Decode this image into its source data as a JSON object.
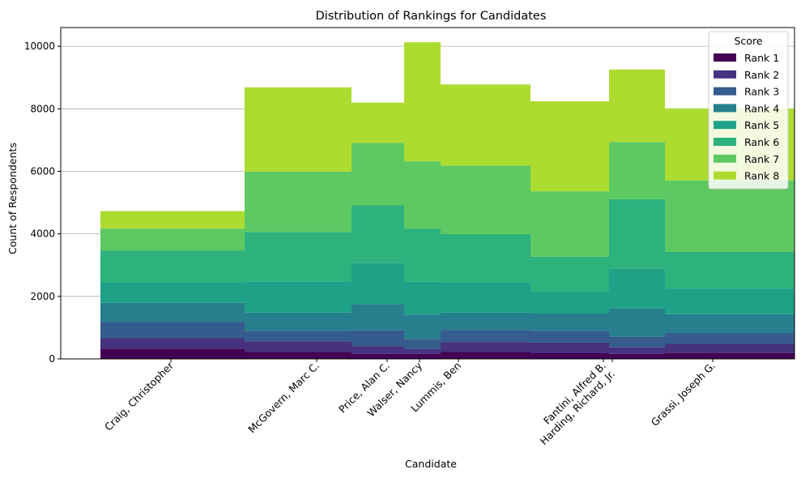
{
  "chart_data": {
    "type": "area",
    "title": "Distribution of Rankings for Candidates",
    "xlabel": "Candidate",
    "ylabel": "Count of Respondents",
    "ylim": [
      0,
      10600
    ],
    "yticks": [
      0,
      2000,
      4000,
      6000,
      8000,
      10000
    ],
    "grid": "y",
    "legend": {
      "title": "Score",
      "placement": "top-right"
    },
    "categories": [
      "Craig, Christopher",
      "McGovern, Marc C.",
      "Price, Alan C.",
      "Walser, Nancy",
      "Lummis, Ben",
      "Fantini, Alfred B.",
      "Harding, Richard, Jr.",
      "Grassi, Joseph G."
    ],
    "series": [
      {
        "name": "Rank 1",
        "color": "#440154",
        "values": [
          330,
          230,
          160,
          160,
          220,
          180,
          160,
          190
        ]
      },
      {
        "name": "Rank 2",
        "color": "#46327e",
        "values": [
          330,
          330,
          250,
          160,
          320,
          340,
          210,
          290
        ]
      },
      {
        "name": "Rank 3",
        "color": "#365c8d",
        "values": [
          530,
          340,
          500,
          320,
          390,
          380,
          340,
          350
        ]
      },
      {
        "name": "Rank 4",
        "color": "#277f8e",
        "values": [
          600,
          580,
          850,
          780,
          550,
          550,
          900,
          600
        ]
      },
      {
        "name": "Rank 5",
        "color": "#1fa187",
        "values": [
          670,
          1000,
          1300,
          1050,
          980,
          710,
          1270,
          820
        ]
      },
      {
        "name": "Rank 6",
        "color": "#2db27d",
        "values": [
          1000,
          1580,
          1850,
          1700,
          1530,
          1110,
          2230,
          1170
        ]
      },
      {
        "name": "Rank 7",
        "color": "#5ec962",
        "values": [
          710,
          1930,
          2000,
          2150,
          2190,
          2090,
          1830,
          2290
        ]
      },
      {
        "name": "Rank 8",
        "color": "#addc30",
        "values": [
          560,
          2700,
          1290,
          3810,
          2600,
          2880,
          2320,
          2300
        ]
      }
    ]
  }
}
